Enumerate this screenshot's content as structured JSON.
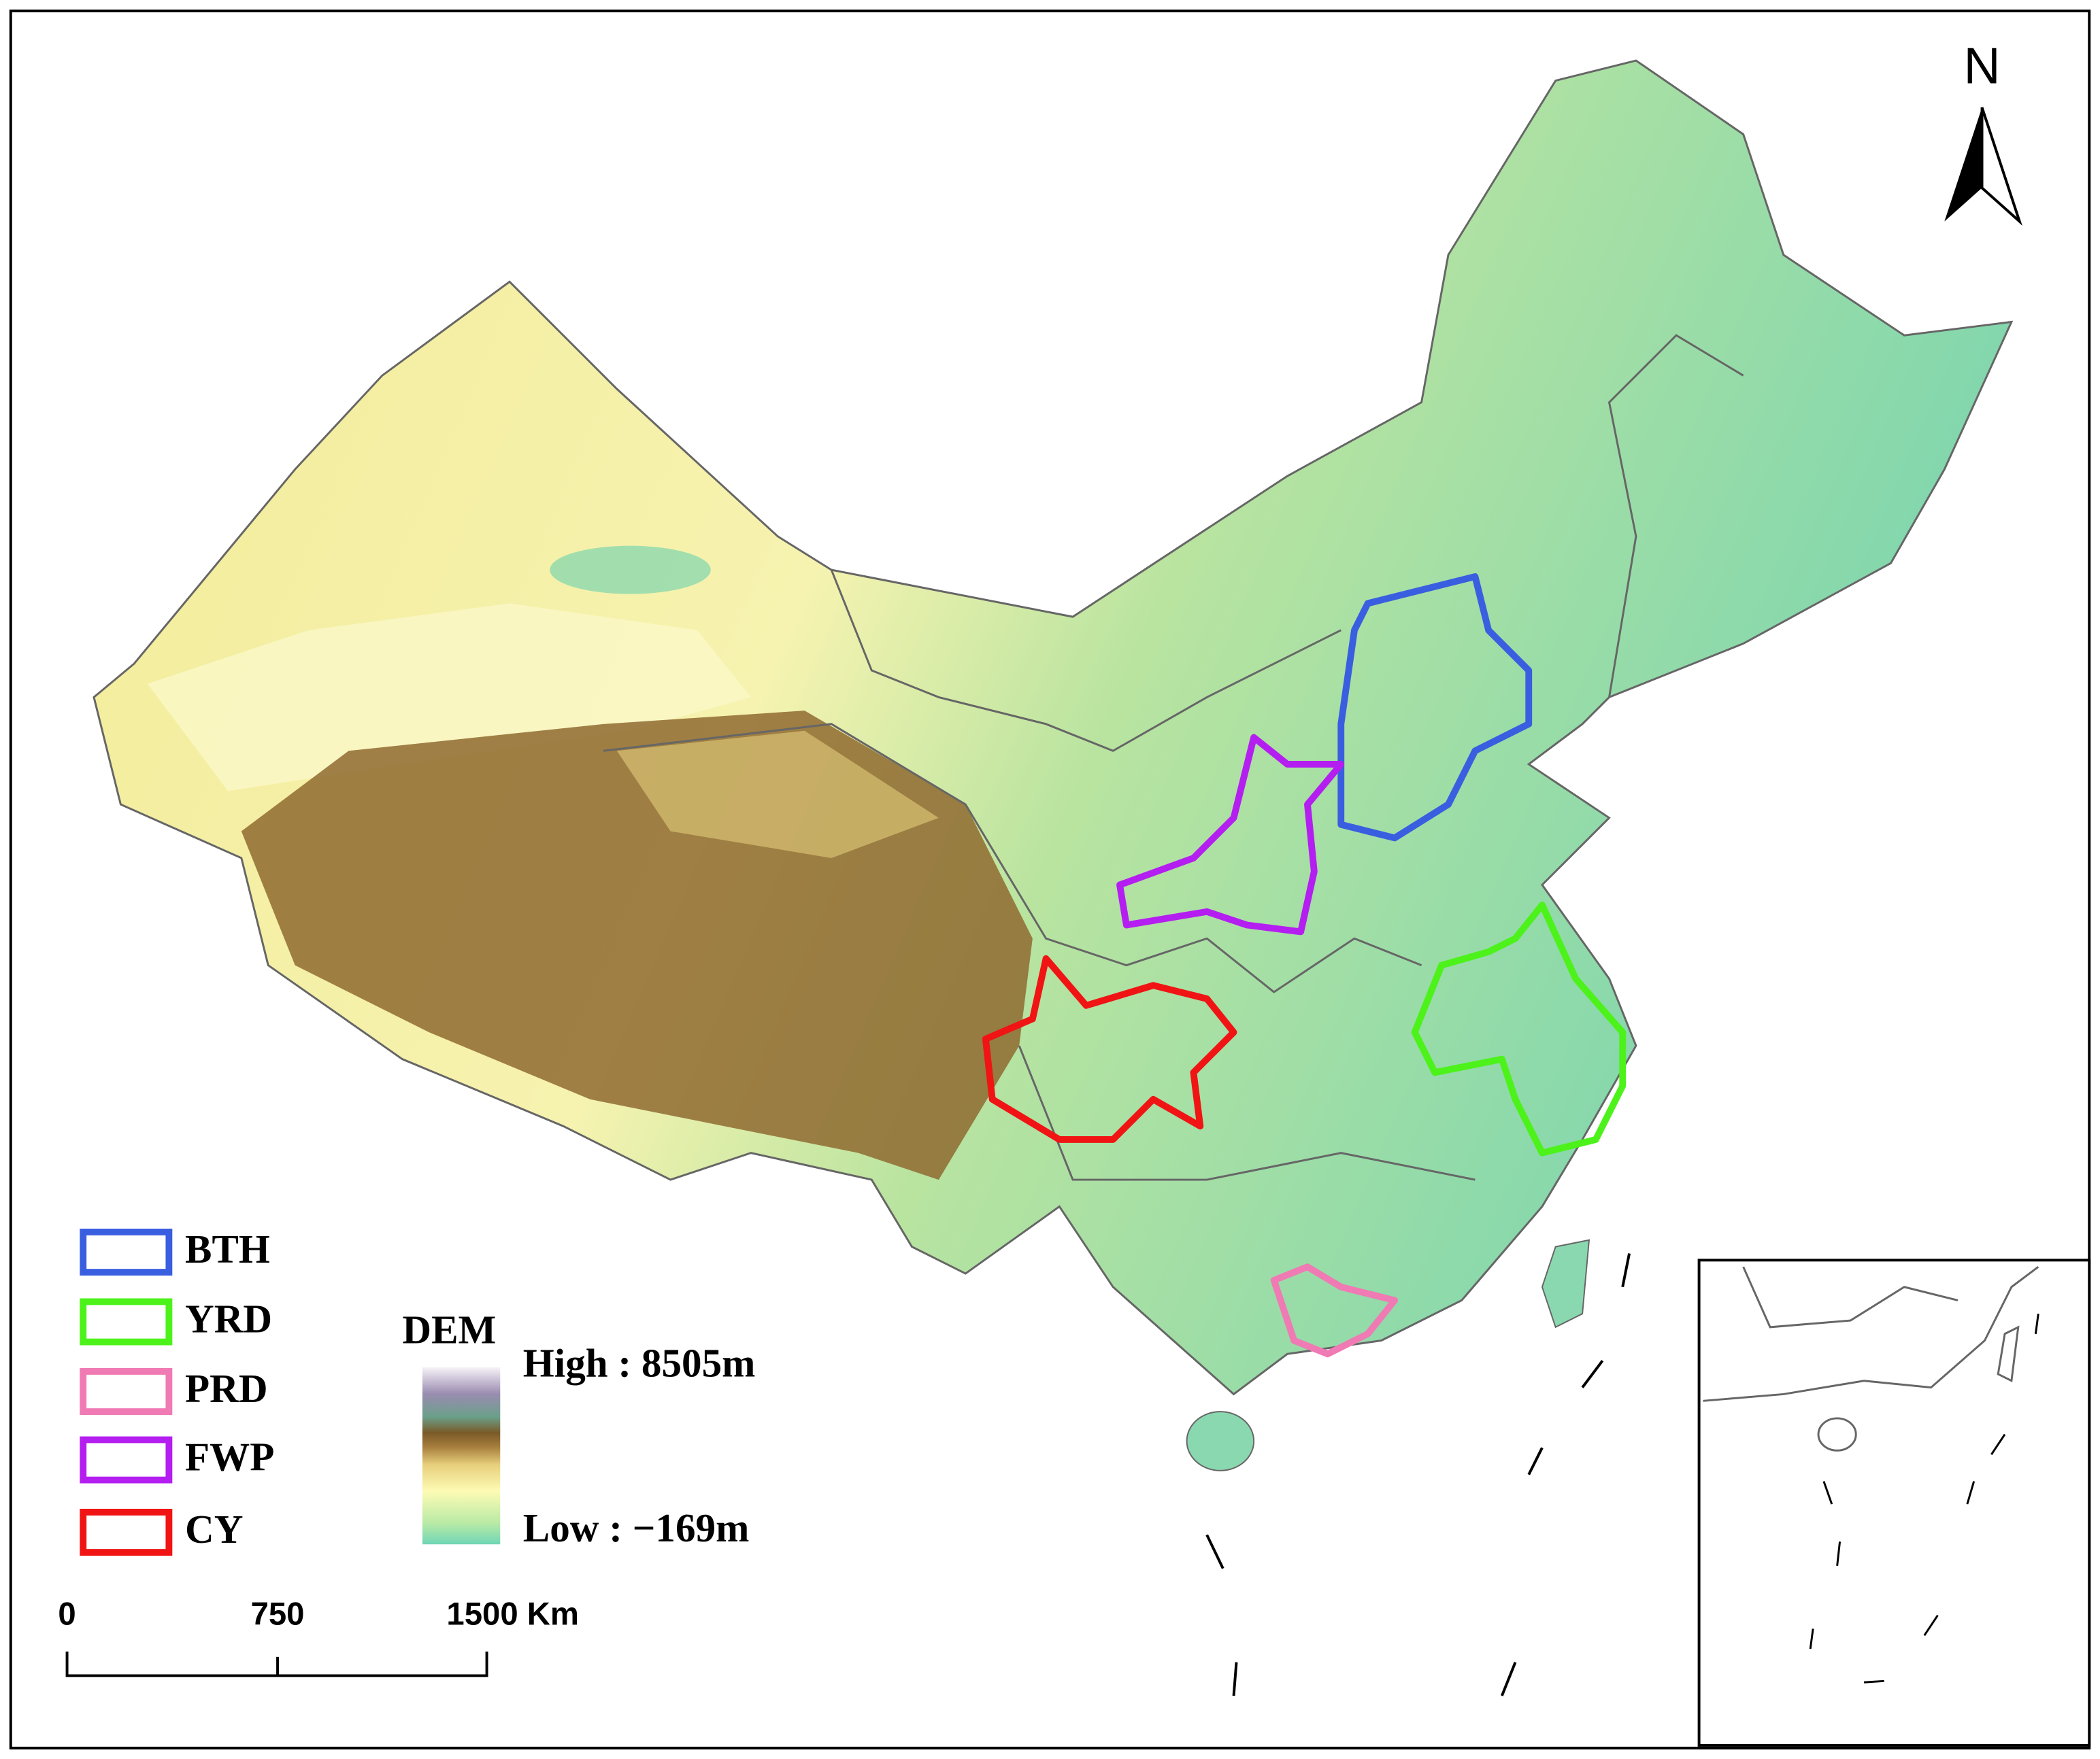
{
  "north": "N",
  "legend": {
    "items": [
      {
        "label": "BTH",
        "color": "#3a5ee0"
      },
      {
        "label": "YRD",
        "color": "#4cf21a"
      },
      {
        "label": "PRD",
        "color": "#f07ab4"
      },
      {
        "label": "FWP",
        "color": "#b41ef0"
      },
      {
        "label": "CY",
        "color": "#f01414"
      }
    ]
  },
  "dem": {
    "title": "DEM",
    "high": "High : 8505m",
    "low": "Low : −169m"
  },
  "scale_bar": {
    "labels": [
      "0",
      "750",
      "1500 Km"
    ]
  }
}
